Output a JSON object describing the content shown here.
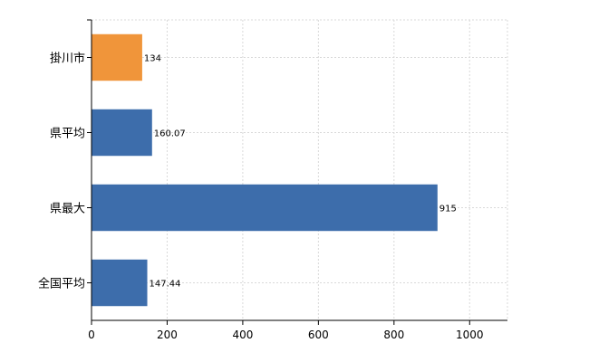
{
  "chart_data": {
    "type": "bar",
    "orientation": "horizontal",
    "categories": [
      "掛川市",
      "県平均",
      "県最大",
      "全国平均"
    ],
    "values": [
      134,
      160.07,
      915,
      147.44
    ],
    "data_labels": [
      "134",
      "160.07",
      "915",
      "147.44"
    ],
    "colors": [
      "#f0953a",
      "#3d6dab",
      "#3d6dab",
      "#3d6dab"
    ],
    "xlim": [
      0,
      1100
    ],
    "xticks": [
      0,
      200,
      400,
      600,
      800,
      1000
    ],
    "grid": true,
    "title": "",
    "xlabel": "",
    "ylabel": ""
  }
}
